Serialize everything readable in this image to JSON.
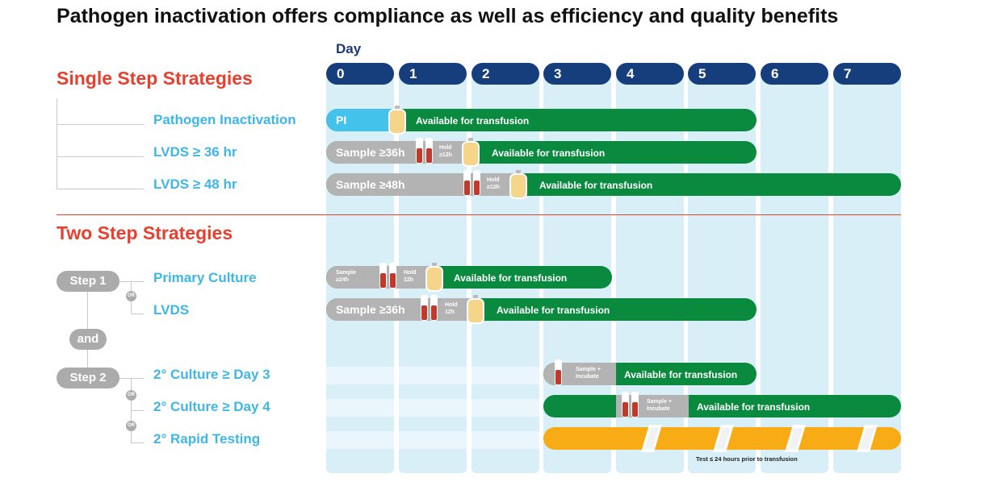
{
  "title": "Pathogen inactivation offers compliance as well as efficiency and quality benefits",
  "day_label": "Day",
  "days": [
    "0",
    "1",
    "2",
    "3",
    "4",
    "5",
    "6",
    "7"
  ],
  "sections": {
    "single": "Single Step Strategies",
    "two": "Two Step Strategies"
  },
  "rows": {
    "pi": "Pathogen Inactivation",
    "lvds36": "LVDS ≥ 36 hr",
    "lvds48": "LVDS ≥ 48 hr",
    "primary": "Primary Culture",
    "lvds": "LVDS",
    "c3": "2° Culture ≥ Day 3",
    "c4": "2° Culture ≥ Day 4",
    "rapid": "2° Rapid Testing"
  },
  "pills": {
    "step1": "Step 1",
    "and": "and",
    "step2": "Step 2"
  },
  "or_label": "OR",
  "bars": {
    "pi_label": "PI",
    "available": "Available for transfusion",
    "sample36": "Sample ≥36h",
    "sample48": "Sample ≥48h",
    "hold12_a": "Hold",
    "hold12_b": "≥12h",
    "sample24_a": "Sample",
    "sample24_b": "≥24h",
    "holdp_a": "Hold",
    "holdp_b": "12h",
    "incubate_a": "Sample +",
    "incubate_b": "Incubate"
  },
  "rapid_note": "Test ≤ 24 hours prior to transfusion",
  "colors": {
    "green": "#0a8a3f",
    "gray": "#b3b3b3",
    "blue": "#43c3ec",
    "yellow": "#f7ac16",
    "navy": "#163d7c",
    "red": "#e8402f",
    "cyan": "#3fb6e4"
  }
}
